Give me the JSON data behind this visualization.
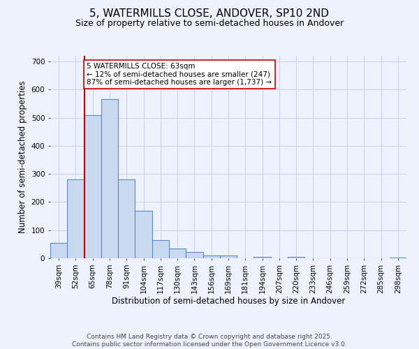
{
  "title_line1": "5, WATERMILLS CLOSE, ANDOVER, SP10 2ND",
  "title_line2": "Size of property relative to semi-detached houses in Andover",
  "xlabel": "Distribution of semi-detached houses by size in Andover",
  "ylabel": "Number of semi-detached properties",
  "categories": [
    "39sqm",
    "52sqm",
    "65sqm",
    "78sqm",
    "91sqm",
    "104sqm",
    "117sqm",
    "130sqm",
    "143sqm",
    "156sqm",
    "169sqm",
    "181sqm",
    "194sqm",
    "207sqm",
    "220sqm",
    "233sqm",
    "246sqm",
    "259sqm",
    "272sqm",
    "285sqm",
    "298sqm"
  ],
  "values": [
    55,
    280,
    510,
    565,
    280,
    170,
    65,
    35,
    23,
    10,
    10,
    0,
    6,
    0,
    5,
    0,
    0,
    0,
    0,
    0,
    2
  ],
  "bar_color": "#c9d9f0",
  "bar_edge_color": "#5b8ac6",
  "vline_color": "#cc0000",
  "annotation_text": "5 WATERMILLS CLOSE: 63sqm\n← 12% of semi-detached houses are smaller (247)\n87% of semi-detached houses are larger (1,737) →",
  "annotation_box_color": "#ffffff",
  "annotation_box_edge": "#cc0000",
  "ylim": [
    0,
    720
  ],
  "yticks": [
    0,
    100,
    200,
    300,
    400,
    500,
    600,
    700
  ],
  "footer_text": "Contains HM Land Registry data © Crown copyright and database right 2025.\nContains public sector information licensed under the Open Government Licence v3.0.",
  "background_color": "#eef2fc",
  "grid_color": "#c8d0e8",
  "title_fontsize": 11,
  "subtitle_fontsize": 9,
  "axis_label_fontsize": 8.5,
  "tick_fontsize": 7.5,
  "annotation_fontsize": 7.5,
  "footer_fontsize": 6.5
}
